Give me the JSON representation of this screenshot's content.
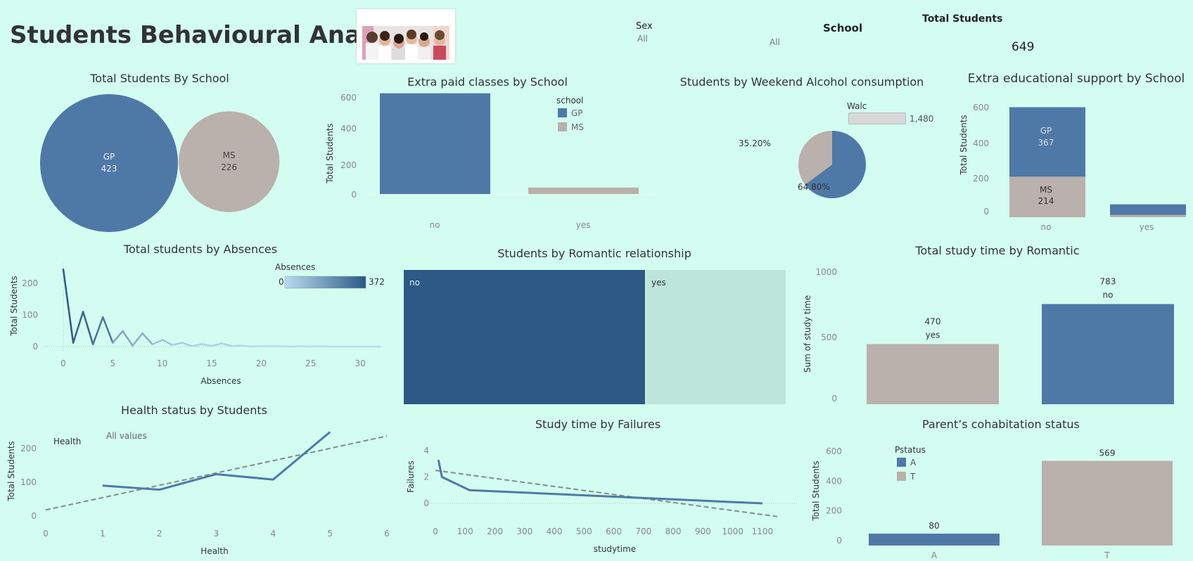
{
  "dashboard": {
    "title": "Students Behavioural Analysis",
    "filters": {
      "sex": {
        "label": "Sex",
        "value": "All"
      },
      "school": {
        "label": "School",
        "value": "All"
      }
    },
    "kpi": {
      "label": "Total Students",
      "value": "649"
    }
  },
  "colors": {
    "gp": "#4e79a7",
    "ms": "#bab0ac",
    "background": "#d3fdf0",
    "dark_blue": "#2c5985",
    "light_green": "#bde5da"
  },
  "chart_data": [
    {
      "id": "students-by-school",
      "type": "bubble",
      "title": "Total Students By School",
      "categories": [
        "GP",
        "MS"
      ],
      "values": [
        423,
        226
      ],
      "value_labels": [
        "423",
        "226"
      ]
    },
    {
      "id": "extra-paid-classes",
      "type": "bar",
      "title": "Extra paid classes by School",
      "ylabel": "Total Students",
      "categories": [
        "no",
        "yes"
      ],
      "series": [
        {
          "name": "GP",
          "values": [
            610,
            0
          ]
        },
        {
          "name": "MS",
          "values": [
            0,
            39
          ]
        }
      ],
      "yticks": [
        "0",
        "200",
        "400",
        "600"
      ],
      "ylim": [
        0,
        620
      ],
      "legend": {
        "title": "school",
        "items": [
          "GP",
          "MS"
        ],
        "position": "top-right"
      }
    },
    {
      "id": "weekend-alcohol",
      "type": "pie",
      "title": "Students by Weekend Alcohol consumption",
      "slices": [
        {
          "name": "GP",
          "value": 64.8,
          "label": "64.80%"
        },
        {
          "name": "MS",
          "value": 35.2,
          "label": "35.20%"
        }
      ],
      "legend": {
        "title": "Walc",
        "value": "1,480"
      }
    },
    {
      "id": "extra-educational-support",
      "type": "stacked-bar",
      "title": "Extra educational support by School",
      "ylabel": "Total Students",
      "categories": [
        "no",
        "yes"
      ],
      "series": [
        {
          "name": "GP",
          "values": [
            367,
            56
          ]
        },
        {
          "name": "MS",
          "values": [
            214,
            12
          ]
        }
      ],
      "labels": {
        "gp_name": "GP",
        "gp_value": "367",
        "ms_name": "MS",
        "ms_value": "214"
      },
      "yticks": [
        "0",
        "200",
        "400",
        "600"
      ],
      "ylim": [
        0,
        620
      ]
    },
    {
      "id": "absences",
      "type": "line",
      "title": "Total students by Absences",
      "xlabel": "Absences",
      "ylabel": "Total Students",
      "x": [
        0,
        1,
        2,
        3,
        4,
        5,
        6,
        7,
        8,
        9,
        10,
        11,
        12,
        13,
        14,
        15,
        16,
        17,
        18,
        19,
        20,
        21,
        22,
        23,
        24,
        25,
        26,
        27,
        28,
        29,
        30,
        31,
        32
      ],
      "values": [
        244,
        12,
        110,
        7,
        93,
        12,
        49,
        3,
        42,
        7,
        21,
        5,
        12,
        1,
        8,
        2,
        10,
        2,
        3,
        0,
        1,
        1,
        1,
        0,
        1,
        0,
        1,
        0,
        0,
        0,
        0,
        0,
        0
      ],
      "xticks": [
        "0",
        "5",
        "10",
        "15",
        "20",
        "25",
        "30"
      ],
      "yticks": [
        "0",
        "100",
        "200"
      ],
      "ylim": [
        0,
        260
      ],
      "legend": {
        "title": "Absences",
        "min": "0",
        "max": "372"
      }
    },
    {
      "id": "romantic-relationship",
      "type": "treemap",
      "title": "Students by Romantic relationship",
      "categories": [
        "no",
        "yes"
      ],
      "values": [
        410,
        239
      ]
    },
    {
      "id": "study-time-by-romantic",
      "type": "bar",
      "title": "Total study time by Romantic",
      "ylabel": "Sum of study time",
      "categories": [
        "yes",
        "no"
      ],
      "values": [
        470,
        783
      ],
      "value_labels": [
        "470",
        "783"
      ],
      "yticks": [
        "0",
        "500",
        "1000"
      ],
      "ylim": [
        0,
        1050
      ]
    },
    {
      "id": "health-status",
      "type": "line",
      "title": "Health status by Students",
      "xlabel": "Health",
      "ylabel": "Total Students",
      "legend": {
        "title": "Health",
        "value": "All values"
      },
      "x": [
        1,
        2,
        3,
        4,
        5
      ],
      "values": [
        90,
        78,
        124,
        108,
        249
      ],
      "trend": {
        "x": [
          0,
          6
        ],
        "y": [
          18,
          237
        ]
      },
      "xticks": [
        "0",
        "1",
        "2",
        "3",
        "4",
        "5",
        "6"
      ],
      "yticks": [
        "0",
        "100",
        "200"
      ],
      "xlim": [
        0,
        6
      ],
      "ylim": [
        0,
        260
      ]
    },
    {
      "id": "study-time-by-failures",
      "type": "line",
      "title": "Study time by Failures",
      "xlabel": "studytime",
      "ylabel": "Failures",
      "x": [
        10,
        22,
        115,
        1100
      ],
      "values": [
        3.3,
        2.0,
        1.0,
        0
      ],
      "trend": {
        "x": [
          0,
          1150
        ],
        "y": [
          2.5,
          -1.0
        ]
      },
      "xticks": [
        "0",
        "100",
        "200",
        "300",
        "400",
        "500",
        "600",
        "700",
        "800",
        "900",
        "1000",
        "1100"
      ],
      "yticks": [
        "0",
        "2",
        "4"
      ],
      "xlim": [
        0,
        1150
      ],
      "ylim": [
        -1.2,
        4.2
      ]
    },
    {
      "id": "parents-cohabitation",
      "type": "bar",
      "title": "Parent’s cohabitation status",
      "ylabel": "Total Students",
      "categories": [
        "A",
        "T"
      ],
      "values": [
        80,
        569
      ],
      "value_labels": [
        "80",
        "569"
      ],
      "yticks": [
        "0",
        "200",
        "400",
        "600"
      ],
      "ylim": [
        0,
        650
      ],
      "legend": {
        "title": "Pstatus",
        "items": [
          "A",
          "T"
        ]
      }
    }
  ]
}
